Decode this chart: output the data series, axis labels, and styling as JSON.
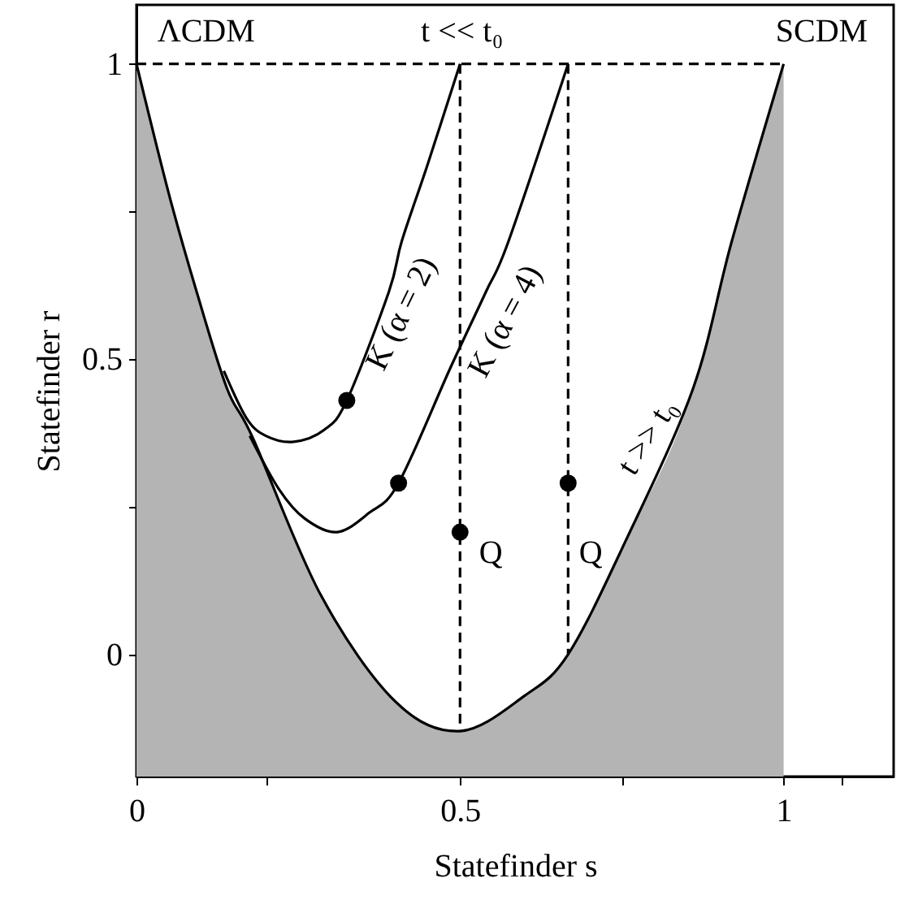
{
  "chart_data": {
    "type": "line",
    "xlabel": "Statefinder  s",
    "ylabel": "Statefinder  r",
    "xlim": [
      0,
      1.17
    ],
    "ylim": [
      -0.207,
      1.1
    ],
    "xticks": [
      0,
      {
        "value": 0.2,
        "label": null
      },
      0.5,
      {
        "value": 0.75,
        "label": null
      },
      1,
      {
        "value": 1.09,
        "label": null
      }
    ],
    "yticks": [
      0,
      {
        "value": 0.25,
        "label": null
      },
      0.5,
      {
        "value": 0.75,
        "label": null
      },
      1
    ],
    "grid": false,
    "series": [
      {
        "color": "#000000",
        "line_style": "solid",
        "x": [
          0,
          0.05,
          0.093,
          0.14,
          0.18,
          0.285,
          0.4,
          0.5,
          0.6,
          0.667,
          0.755,
          0.86,
          0.92,
          1
        ],
        "values": [
          1,
          0.78,
          0.614,
          0.45,
          0.366,
          0.1,
          -0.08,
          -0.13,
          -0.07,
          0,
          0.19,
          0.45,
          0.7,
          1
        ],
        "lower": [
          -0.207,
          -0.207,
          -0.207,
          -0.207,
          -0.207,
          -0.207,
          -0.207,
          -0.207,
          -0.207,
          -0.207,
          -0.207,
          -0.207,
          -0.207,
          -0.207
        ],
        "upper": [
          1,
          0.78,
          0.614,
          0.45,
          0.366,
          0.1,
          -0.08,
          -0.13,
          -0.07,
          0,
          0.19,
          0.45,
          0.7,
          1
        ]
      },
      {
        "type": "line",
        "color": "#000000",
        "line_style": "solid",
        "x": [
          0.135,
          0.17,
          0.2,
          0.243,
          0.29,
          0.325,
          0.39,
          0.41,
          0.45,
          0.5
        ],
        "values": [
          0.48,
          0.4,
          0.37,
          0.36,
          0.38,
          0.43,
          0.614,
          0.7,
          0.83,
          1
        ]
      },
      {
        "type": "line",
        "color": "#000000",
        "line_style": "solid",
        "x": [
          0.175,
          0.22,
          0.26,
          0.31,
          0.36,
          0.405,
          0.485,
          0.54,
          0.575,
          0.667
        ],
        "values": [
          0.37,
          0.28,
          0.23,
          0.207,
          0.24,
          0.29,
          0.485,
          0.614,
          0.7,
          1
        ]
      },
      {
        "type": "line",
        "color": "#000000",
        "line_style": "dashed",
        "x": [
          0,
          1
        ],
        "values": [
          1,
          1
        ]
      },
      {
        "type": "line",
        "color": "#000000",
        "line_style": "dashed",
        "x": [
          0.5,
          0.5
        ],
        "values": [
          1,
          -0.13
        ]
      },
      {
        "type": "line",
        "color": "#000000",
        "line_style": "dashed",
        "x": [
          0.667,
          0.667
        ],
        "values": [
          1,
          0
        ]
      },
      {
        "type": "scatter",
        "color": "#000000",
        "marker": "circle",
        "x": [
          0.325,
          0.405,
          0.5,
          0.667
        ],
        "values": [
          0.43,
          0.29,
          0.207,
          0.29
        ]
      }
    ],
    "annotations": [
      "ΛCDM",
      "t << t₀",
      "SCDM",
      "K (α = 2)",
      "K (α = 4)",
      "Q",
      "Q",
      "t >> t₀"
    ]
  }
}
